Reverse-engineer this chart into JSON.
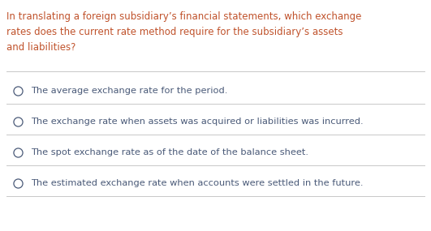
{
  "background_color": "#ffffff",
  "question_lines": [
    "In translating a foreign subsidiary’s financial statements, which exchange",
    "rates does the current rate method require for the subsidiary’s assets",
    "and liabilities?"
  ],
  "question_color": "#c0522b",
  "options": [
    "The average exchange rate for the period.",
    "The exchange rate when assets was acquired or liabilities was incurred.",
    "The spot exchange rate as of the date of the balance sheet.",
    "The estimated exchange rate when accounts were settled in the future."
  ],
  "option_color": "#4a5a78",
  "divider_color": "#c8c8c8",
  "fig_width": 5.31,
  "fig_height": 2.85,
  "dpi": 100,
  "question_fontsize": 8.5,
  "option_fontsize": 8.2
}
